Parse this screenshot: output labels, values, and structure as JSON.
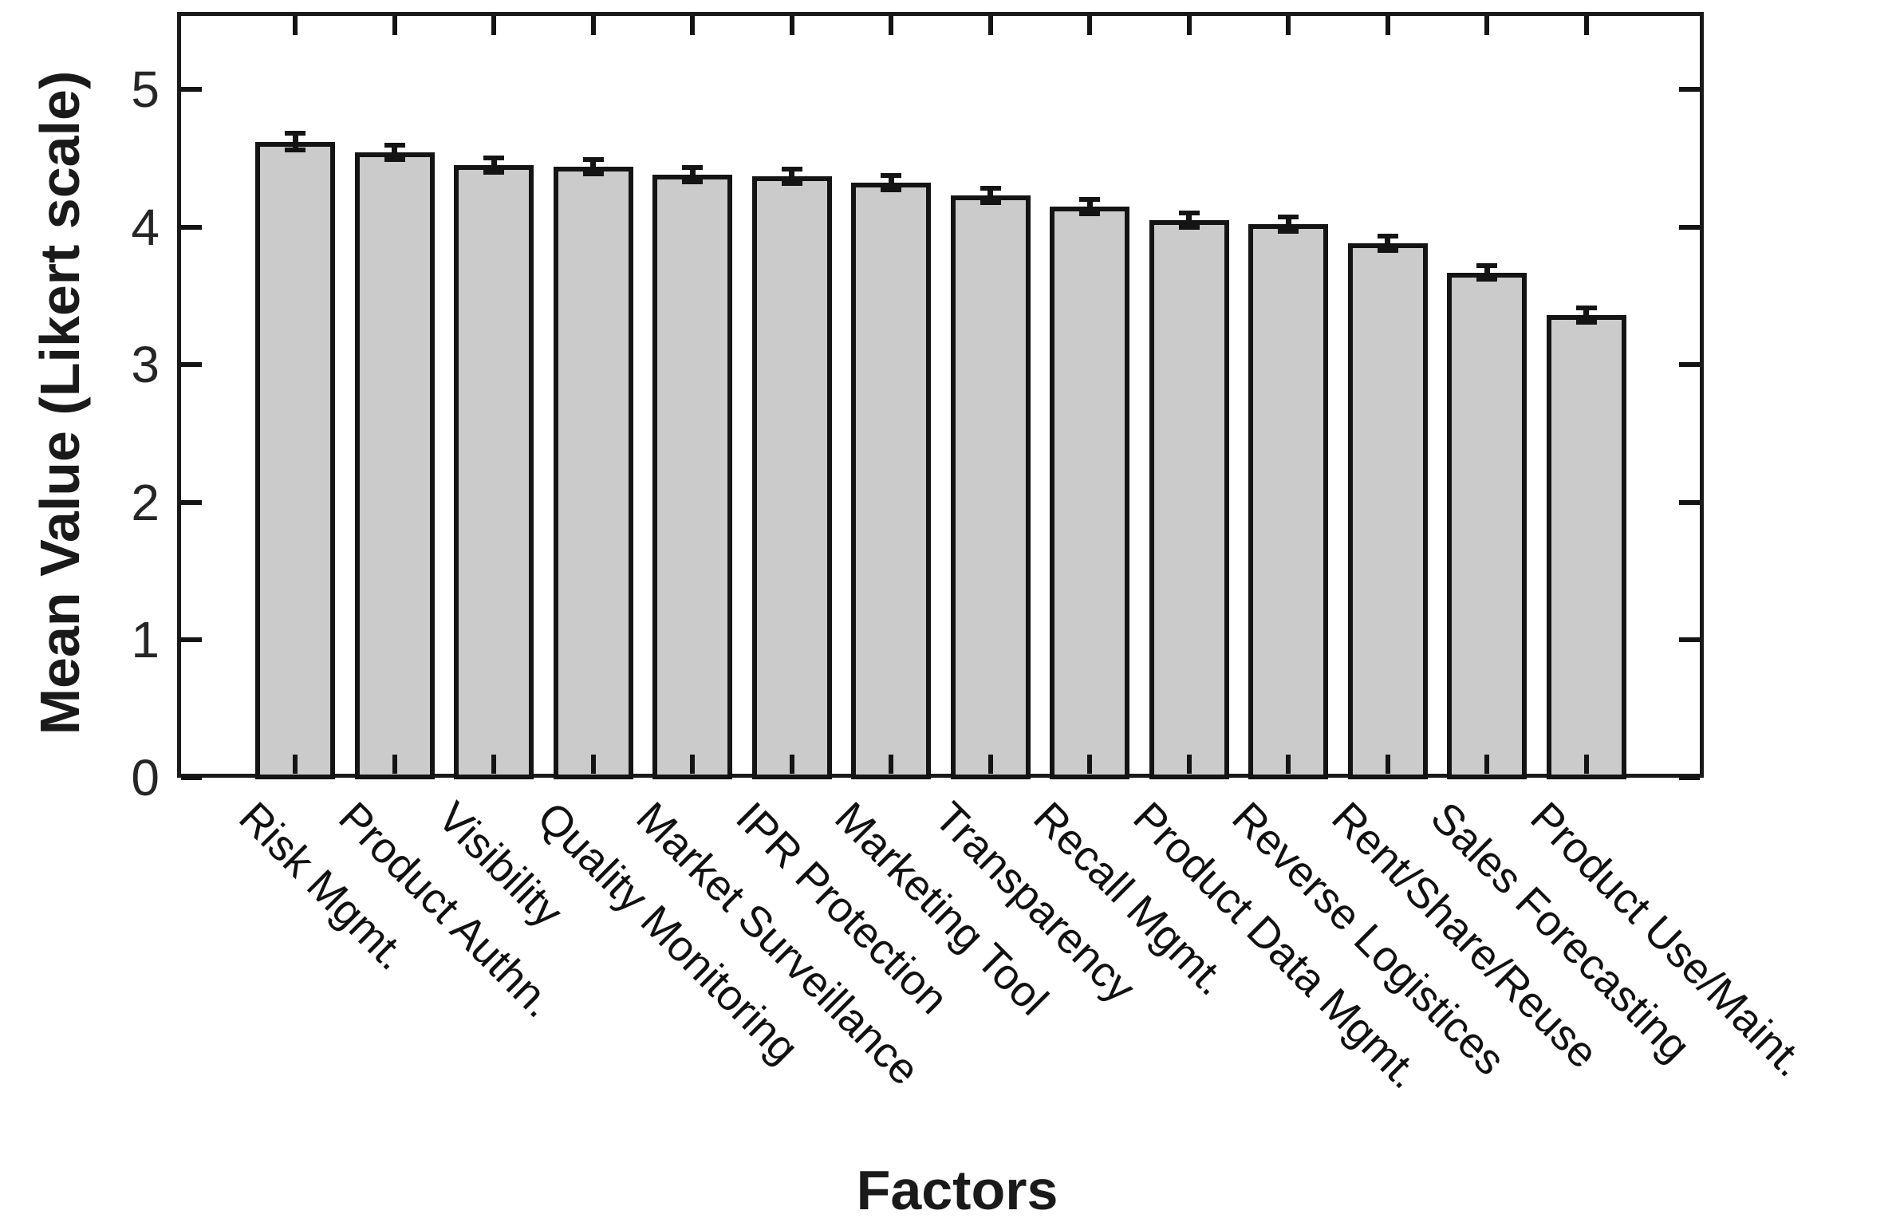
{
  "figure": {
    "background": "#ffffff",
    "axis_color": "#1a1a1a",
    "tick_label_color": "#262626"
  },
  "chart_data": {
    "type": "bar",
    "title": "",
    "xlabel": "Factors",
    "ylabel": "Mean Value (Likert scale)",
    "categories": [
      "Risk Mgmt.",
      "Product Authn.",
      "Visibility",
      "Quality Monitoring",
      "Market Surveillance",
      "IPR Protection",
      "Marketing Tool",
      "Transparency",
      "Recall Mgmt.",
      "Product Data Mgmt.",
      "Reverse Logistices",
      "Rent/Share/Reuse",
      "Sales Forecasting",
      "Product Use/Maint."
    ],
    "values": [
      4.62,
      4.54,
      4.45,
      4.44,
      4.38,
      4.37,
      4.32,
      4.23,
      4.15,
      4.05,
      4.02,
      3.88,
      3.67,
      3.36
    ],
    "errors": [
      0.05,
      0.04,
      0.04,
      0.04,
      0.04,
      0.04,
      0.04,
      0.04,
      0.04,
      0.04,
      0.04,
      0.04,
      0.04,
      0.04
    ],
    "ylim": [
      0,
      5.56
    ],
    "yticks": [
      0,
      1,
      2,
      3,
      4,
      5
    ],
    "ytick_labels": [
      "0",
      "1",
      "2",
      "3",
      "4",
      "5"
    ],
    "grid": false,
    "legend": null,
    "bar_fill": "#cbcbcb",
    "bar_edge": "#141414"
  }
}
